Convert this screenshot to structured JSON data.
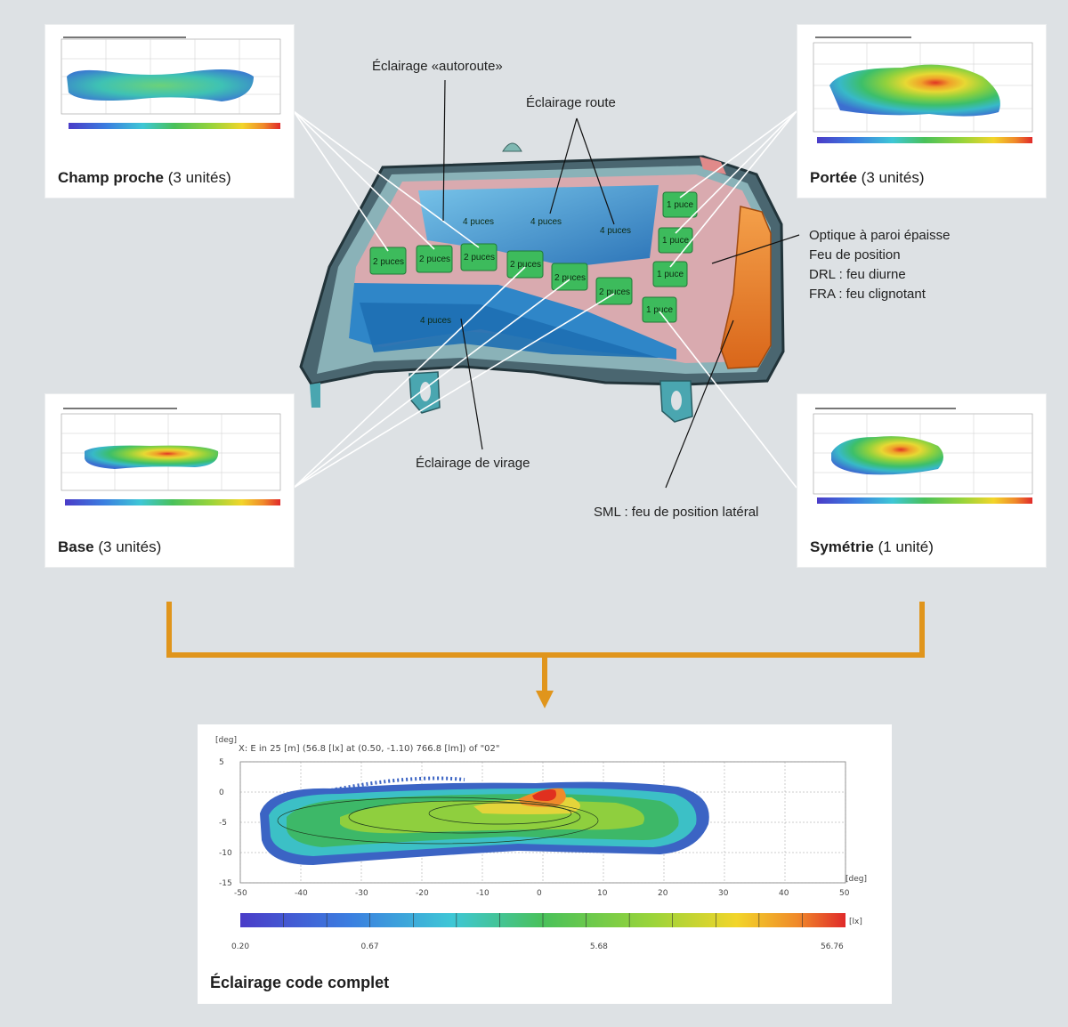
{
  "cards": {
    "champ_proche": {
      "name": "Champ proche",
      "count": "(3 unités)"
    },
    "portee": {
      "name": "Portée",
      "count": "(3 unités)"
    },
    "base": {
      "name": "Base",
      "count": "(3 unités)"
    },
    "symetrie": {
      "name": "Symétrie",
      "count": "(1 unité)"
    }
  },
  "labels": {
    "autoroute": "Éclairage «autoroute»",
    "route": "Éclairage route",
    "virage": "Éclairage de virage",
    "optique": "Optique à paroi épaisse",
    "feu_position": "Feu de position",
    "drl": "DRL : feu diurne",
    "fra": "FRA : feu clignotant",
    "sml": "SML : feu de position latéral"
  },
  "chips": {
    "four": "4 puces",
    "two": "2 puces",
    "one": "1 puce"
  },
  "main_chart": {
    "caption": "Éclairage code complet",
    "header": "X: E in 25 [m] (56.8 [lx] at (0.50, -1.10) 766.8 [lm]) of \"02\"",
    "y_unit": "[deg]",
    "x_unit": "[deg]",
    "scale_unit": "[lx]",
    "scale_ticks": [
      "0.20",
      "0.67",
      "5.68",
      "56.76"
    ]
  },
  "chart_data": {
    "type": "heatmap",
    "title": "X: E in 25 [m] (56.8 [lx] at (0.50, -1.10) 766.8 [lm]) of \"02\"",
    "xlabel": "[deg]",
    "ylabel": "[deg]",
    "x_ticks": [
      "-50",
      "-40",
      "-30",
      "-20",
      "-10",
      "0",
      "10",
      "20",
      "30",
      "40",
      "50"
    ],
    "y_ticks": [
      "5",
      "0",
      "-5",
      "-10",
      "-15"
    ],
    "xlim": [
      -50,
      50
    ],
    "ylim": [
      -15,
      5
    ],
    "colorbar": {
      "unit": "[lx]",
      "ticks": [
        0.2,
        0.67,
        5.68,
        56.76
      ]
    },
    "peak": {
      "x": 0.5,
      "y": -1.1,
      "value": 56.8
    },
    "grid": true
  },
  "colors": {
    "background": "#dde1e4",
    "arrow": "#e0951c",
    "chip": "#3dbb5c",
    "orange_lens": "#e57c1f"
  }
}
